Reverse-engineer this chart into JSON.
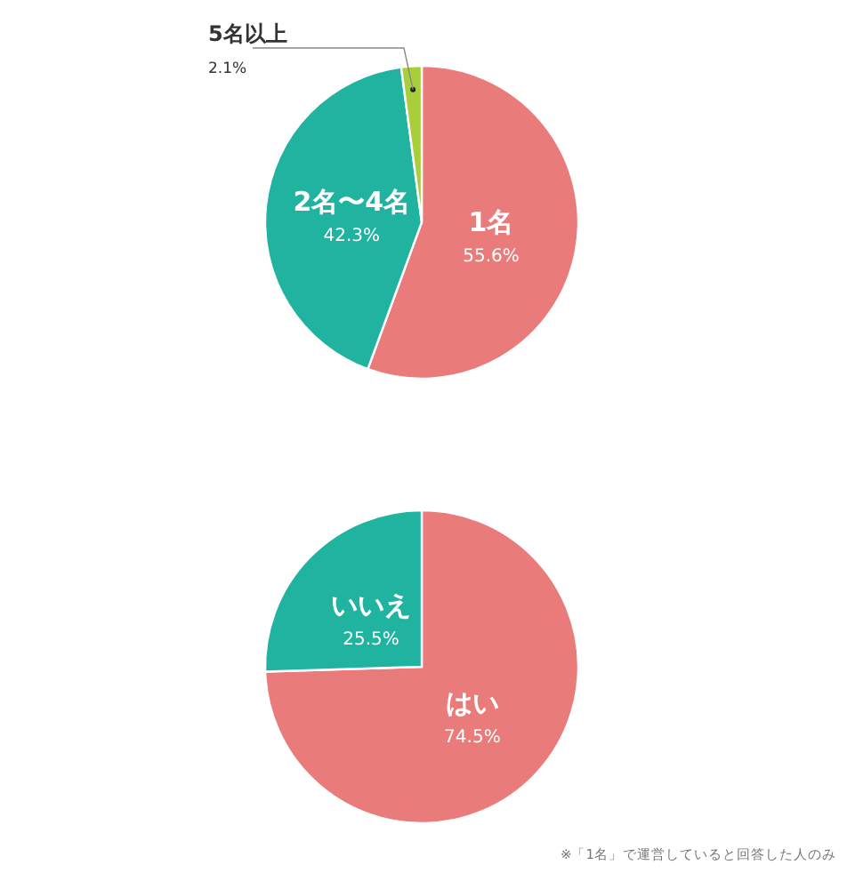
{
  "chart_data": [
    {
      "type": "pie",
      "categories": [
        "1名",
        "2名〜4名",
        "5名以上"
      ],
      "values": [
        55.6,
        42.3,
        2.1
      ],
      "colors": [
        "#e97b7b",
        "#20b3a0",
        "#a8cf3a"
      ],
      "value_labels": [
        "55.6%",
        "42.3%",
        "2.1%"
      ]
    },
    {
      "type": "pie",
      "categories": [
        "はい",
        "いいえ"
      ],
      "values": [
        74.5,
        25.5
      ],
      "colors": [
        "#e97b7b",
        "#20b3a0"
      ],
      "value_labels": [
        "74.5%",
        "25.5%"
      ],
      "annotations": [
        "※「1名」で運営していると回答した人のみ"
      ]
    }
  ]
}
